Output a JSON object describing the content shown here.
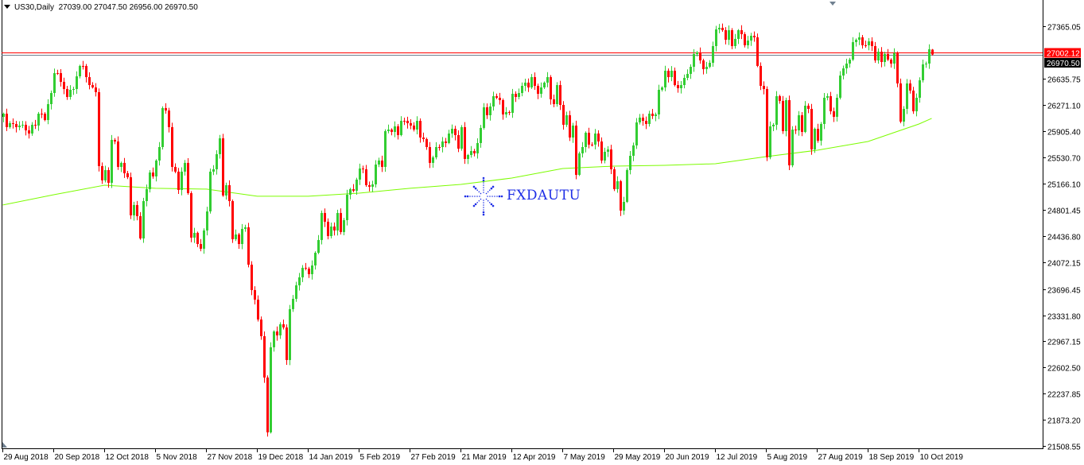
{
  "header": {
    "symbol_timeframe": "US30,Daily",
    "ohlc": "27039.00 27047.50 26956.00 26970.50"
  },
  "watermark": {
    "text": "FXDAUTU",
    "color": "#1f2fe6"
  },
  "colors": {
    "bull": "#32CD32",
    "bear": "#FF0000",
    "ma": "#7CFC00",
    "price_line": "#FF0000",
    "bid_line": "#708090"
  },
  "chart_data": {
    "type": "candlestick",
    "title": "US30,Daily",
    "price_axis": {
      "ticks": [
        "27365.05",
        "26635.75",
        "26271.10",
        "25905.40",
        "25530.70",
        "25166.10",
        "24801.45",
        "24436.80",
        "24072.15",
        "23696.45",
        "23331.80",
        "22967.15",
        "22602.50",
        "22237.85",
        "21873.20",
        "21508.55"
      ],
      "ylim": [
        21508.55,
        27365.05
      ]
    },
    "time_axis": {
      "ticks": [
        "29 Aug 2018",
        "20 Sep 2018",
        "12 Oct 2018",
        "5 Nov 2018",
        "27 Nov 2018",
        "19 Dec 2018",
        "14 Jan 2019",
        "5 Feb 2019",
        "27 Feb 2019",
        "21 Mar 2019",
        "12 Apr 2019",
        "7 May 2019",
        "29 May 2019",
        "20 Jun 2019",
        "12 Jul 2019",
        "5 Aug 2019",
        "27 Aug 2019",
        "18 Sep 2019",
        "10 Oct 2019"
      ]
    },
    "current_price_label": "27002.12",
    "bid_price_label": "26970.50",
    "last_bar": {
      "open": 27039.0,
      "high": 27047.5,
      "low": 26956.0,
      "close": 26970.5
    },
    "closes": [
      26145,
      25957,
      26012,
      26001,
      25957,
      25979,
      25990,
      25912,
      25868,
      25990,
      25979,
      26145,
      26145,
      26056,
      26278,
      26433,
      26711,
      26711,
      26589,
      26489,
      26378,
      26478,
      26489,
      26666,
      26811,
      26811,
      26655,
      26544,
      26511,
      26445,
      25413,
      25214,
      25358,
      25180,
      25779,
      25757,
      25402,
      25458,
      25313,
      25258,
      24726,
      24870,
      24715,
      24404,
      24925,
      25092,
      25324,
      25269,
      25491,
      25679,
      26223,
      26189,
      25957,
      25402,
      25336,
      25080,
      25336,
      25458,
      25036,
      24415,
      24482,
      24326,
      24260,
      24515,
      24781,
      25336,
      25369,
      25580,
      25801,
      25003,
      25147,
      24925,
      24393,
      24459,
      24326,
      24537,
      24559,
      24038,
      23683,
      23550,
      23273,
      23040,
      22463,
      21698,
      22885,
      23106,
      23051,
      23206,
      23162,
      22707,
      23417,
      23561,
      23750,
      23861,
      23994,
      23983,
      23905,
      24027,
      24204,
      24382,
      24759,
      24637,
      24437,
      24570,
      24515,
      24759,
      24493,
      24659,
      25014,
      25092,
      25069,
      25225,
      25380,
      25369,
      25147,
      25125,
      25158,
      25435,
      25491,
      25402,
      25901,
      25923,
      25890,
      25968,
      25846,
      26045,
      26045,
      26012,
      25979,
      25923,
      26045,
      25812,
      25790,
      25679,
      25458,
      25535,
      25679,
      25679,
      25757,
      25735,
      25868,
      25934,
      25846,
      25657,
      25957,
      25513,
      25568,
      25624,
      25591,
      25735,
      25946,
      26234,
      26123,
      26245,
      26389,
      26367,
      26334,
      26134,
      26167,
      26156,
      26422,
      26378,
      26433,
      26533,
      26578,
      26511,
      26655,
      26533,
      26422,
      26511,
      26578,
      26655,
      26345,
      26278,
      26544,
      26267,
      25990,
      26123,
      25812,
      25979,
      25291,
      25591,
      25679,
      25879,
      25713,
      25713,
      25868,
      25757,
      25491,
      25613,
      25646,
      25369,
      25092,
      25202,
      24792,
      24914,
      25358,
      25557,
      25702,
      26023,
      26090,
      26045,
      26001,
      26145,
      26112,
      26134,
      26478,
      26511,
      26744,
      26655,
      26744,
      26544,
      26500,
      26544,
      26644,
      26700,
      26799,
      26977,
      26999,
      26888,
      26766,
      26799,
      26855,
      27088,
      27321,
      27343,
      27310,
      27176,
      27310,
      27088,
      27188,
      27310,
      27254,
      27099,
      27165,
      27232,
      27210,
      26811,
      26533,
      26489,
      25535,
      25968,
      25990,
      26389,
      26323,
      25901,
      26334,
      25424,
      25923,
      25912,
      26123,
      25890,
      26256,
      26212,
      25646,
      25934,
      25768,
      26001,
      26367,
      26389,
      26178,
      26101,
      26367,
      26677,
      26777,
      26844,
      26899,
      27143,
      27176,
      27210,
      27099,
      27099,
      27154,
      27088,
      26888,
      27010,
      26866,
      26977,
      26899,
      26844,
      26988,
      26567,
      26034,
      26212,
      26567,
      26467,
      26178,
      26367,
      26611,
      26833,
      26844,
      27043,
      26970.5
    ],
    "moving_average": {
      "at_dates": [
        "29 Aug 2018",
        "20 Sep 2018",
        "12 Oct 2018",
        "5 Nov 2018",
        "27 Nov 2018",
        "19 Dec 2018",
        "14 Jan 2019",
        "5 Feb 2019",
        "27 Feb 2019",
        "21 Mar 2019",
        "12 Apr 2019",
        "7 May 2019",
        "29 May 2019",
        "20 Jun 2019",
        "12 Jul 2019",
        "5 Aug 2019",
        "27 Aug 2019",
        "18 Sep 2019",
        "10 Oct 2019"
      ],
      "values": [
        24870,
        25014,
        25147,
        25103,
        25092,
        24992,
        24992,
        25036,
        25103,
        25158,
        25247,
        25380,
        25413,
        25424,
        25446,
        25546,
        25635,
        25757,
        26001
      ],
      "last_value": 26079
    },
    "grid": false
  }
}
